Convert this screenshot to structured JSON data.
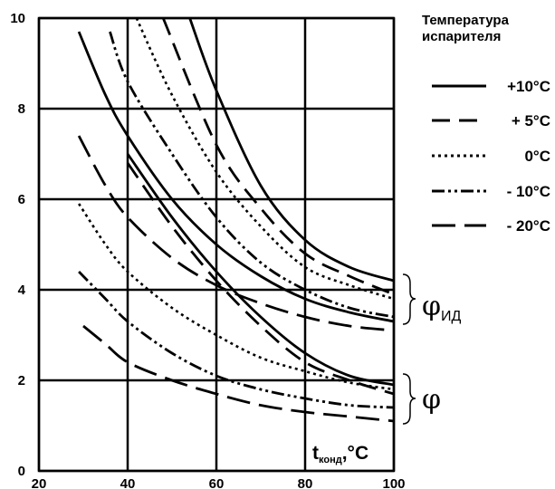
{
  "chart_data": {
    "type": "line",
    "xlabel": {
      "main": "t",
      "sub": "конд",
      "unit": ",°C"
    },
    "xlim": [
      20,
      100
    ],
    "ylim": [
      0,
      10
    ],
    "x_ticks": [
      "20",
      "40",
      "60",
      "80",
      "100"
    ],
    "y_ticks": [
      "0",
      "2",
      "4",
      "6",
      "8",
      "10"
    ],
    "grid": true,
    "legend": {
      "title_lines": [
        "Температура",
        "испарителя"
      ],
      "placement": "right",
      "entries": [
        {
          "label": "+10°C",
          "style": "solid"
        },
        {
          "label": "+ 5°C",
          "style": "dashed"
        },
        {
          "label": "0°C",
          "style": "dotted"
        },
        {
          "label": "- 10°C",
          "style": "dashdotdot"
        },
        {
          "label": "- 20°C",
          "style": "longdash"
        }
      ]
    },
    "group_labels": [
      {
        "symbol": "φ",
        "sub": "ИД"
      },
      {
        "symbol": "φ",
        "sub": ""
      }
    ],
    "series": [
      {
        "group": "φИД",
        "style": "solid",
        "points": [
          [
            54,
            10.0
          ],
          [
            60,
            8.4
          ],
          [
            70,
            6.3
          ],
          [
            80,
            5.1
          ],
          [
            90,
            4.5
          ],
          [
            100,
            4.2
          ]
        ]
      },
      {
        "group": "φИД",
        "style": "dashed",
        "points": [
          [
            48,
            10.0
          ],
          [
            60,
            7.2
          ],
          [
            70,
            5.8
          ],
          [
            80,
            4.8
          ],
          [
            90,
            4.3
          ],
          [
            100,
            3.9
          ]
        ]
      },
      {
        "group": "φИД",
        "style": "dotted",
        "points": [
          [
            42,
            10.0
          ],
          [
            50,
            8.3
          ],
          [
            60,
            6.6
          ],
          [
            70,
            5.4
          ],
          [
            80,
            4.5
          ],
          [
            90,
            4.1
          ],
          [
            100,
            3.8
          ]
        ]
      },
      {
        "group": "φИД",
        "style": "dashdotdot",
        "points": [
          [
            36,
            9.7
          ],
          [
            40,
            8.6
          ],
          [
            50,
            7.0
          ],
          [
            60,
            5.6
          ],
          [
            70,
            4.6
          ],
          [
            80,
            4.0
          ],
          [
            90,
            3.6
          ],
          [
            100,
            3.4
          ]
        ]
      },
      {
        "group": "φИД",
        "style": "solid",
        "points": [
          [
            29,
            9.7
          ],
          [
            35,
            8.3
          ],
          [
            40,
            7.4
          ],
          [
            50,
            6.0
          ],
          [
            60,
            5.0
          ],
          [
            70,
            4.3
          ],
          [
            80,
            3.8
          ],
          [
            90,
            3.5
          ],
          [
            100,
            3.3
          ]
        ]
      },
      {
        "group": "φИД",
        "style": "longdash",
        "points": [
          [
            29,
            7.4
          ],
          [
            35,
            6.3
          ],
          [
            40,
            5.6
          ],
          [
            50,
            4.7
          ],
          [
            60,
            4.1
          ],
          [
            70,
            3.7
          ],
          [
            80,
            3.4
          ],
          [
            90,
            3.2
          ],
          [
            100,
            3.1
          ]
        ]
      },
      {
        "group": "φ",
        "style": "dotted",
        "points": [
          [
            29,
            5.9
          ],
          [
            35,
            5.0
          ],
          [
            40,
            4.4
          ],
          [
            50,
            3.6
          ],
          [
            60,
            3.0
          ],
          [
            70,
            2.5
          ],
          [
            80,
            2.2
          ],
          [
            90,
            1.95
          ],
          [
            100,
            1.8
          ]
        ]
      },
      {
        "group": "φ",
        "style": "dashed",
        "points": [
          [
            40,
            6.8
          ],
          [
            50,
            5.4
          ],
          [
            60,
            4.2
          ],
          [
            70,
            3.2
          ],
          [
            80,
            2.4
          ],
          [
            90,
            2.0
          ],
          [
            100,
            1.7
          ]
        ]
      },
      {
        "group": "φ",
        "style": "solid",
        "points": [
          [
            40,
            7.0
          ],
          [
            50,
            5.6
          ],
          [
            60,
            4.4
          ],
          [
            70,
            3.4
          ],
          [
            80,
            2.6
          ],
          [
            90,
            2.1
          ],
          [
            100,
            1.9
          ]
        ]
      },
      {
        "group": "φ",
        "style": "dashdotdot",
        "points": [
          [
            29,
            4.4
          ],
          [
            35,
            3.8
          ],
          [
            40,
            3.3
          ],
          [
            50,
            2.6
          ],
          [
            60,
            2.1
          ],
          [
            70,
            1.8
          ],
          [
            80,
            1.6
          ],
          [
            90,
            1.45
          ],
          [
            100,
            1.4
          ]
        ]
      },
      {
        "group": "φ",
        "style": "longdash",
        "points": [
          [
            30,
            3.2
          ],
          [
            35,
            2.8
          ],
          [
            40,
            2.4
          ],
          [
            50,
            2.0
          ],
          [
            60,
            1.7
          ],
          [
            70,
            1.45
          ],
          [
            80,
            1.3
          ],
          [
            90,
            1.2
          ],
          [
            100,
            1.1
          ]
        ]
      }
    ]
  }
}
